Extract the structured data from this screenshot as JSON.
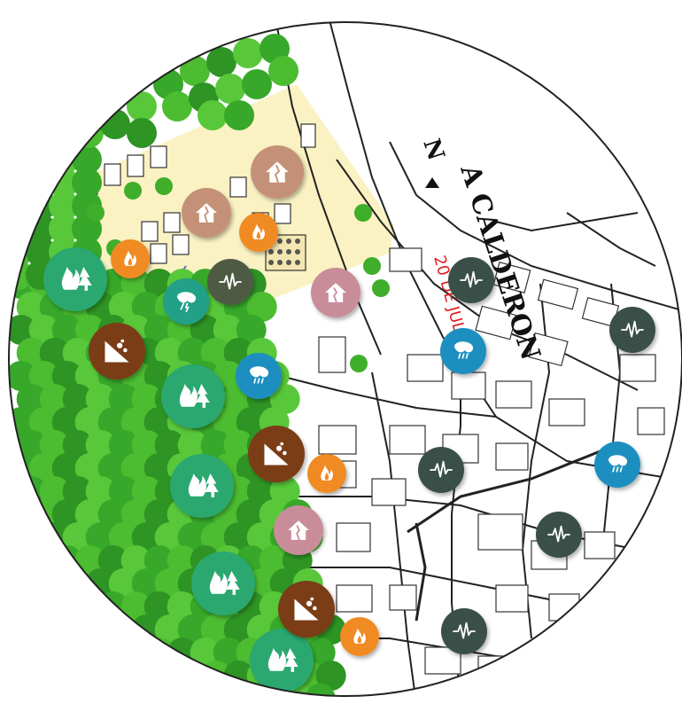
{
  "map": {
    "street_label": "A CALDERON",
    "north_marker": "N",
    "red_label": "20 DE JULIO",
    "colors": {
      "forest_fire": "#2aa870",
      "small_fire": "#f08a24",
      "landslide": "#7a3e12",
      "flood": "#1e8fc0",
      "storm": "#22a088",
      "seismic": "#3a4f4a",
      "seismic_olive": "#4f5a45",
      "house_damage": "#c49178",
      "house_pink": "#c98d9a",
      "vegetation": "#3fae2a",
      "urban_zone": "#faf2c2",
      "roads": "#222222"
    }
  },
  "markers": [
    {
      "icon": "forest-fire-icon",
      "color": "#2aa870"
    },
    {
      "icon": "forest-fire-icon",
      "color": "#2aa870"
    },
    {
      "icon": "forest-fire-icon",
      "color": "#2aa870"
    },
    {
      "icon": "forest-fire-icon",
      "color": "#2aa870"
    },
    {
      "icon": "forest-fire-icon",
      "color": "#2aa870"
    },
    {
      "icon": "fire-icon",
      "color": "#f08a24"
    },
    {
      "icon": "fire-icon",
      "color": "#f08a24"
    },
    {
      "icon": "fire-icon",
      "color": "#f08a24"
    },
    {
      "icon": "fire-icon",
      "color": "#f08a24"
    },
    {
      "icon": "landslide-icon",
      "color": "#7a3e12"
    },
    {
      "icon": "landslide-icon",
      "color": "#7a3e12"
    },
    {
      "icon": "landslide-icon",
      "color": "#7a3e12"
    },
    {
      "icon": "flood-icon",
      "color": "#1e8fc0"
    },
    {
      "icon": "flood-icon",
      "color": "#1e8fc0"
    },
    {
      "icon": "flood-icon",
      "color": "#1e8fc0"
    },
    {
      "icon": "windstorm-icon",
      "color": "#22a088"
    },
    {
      "icon": "seismic-icon",
      "color": "#4f5a45"
    },
    {
      "icon": "seismic-icon",
      "color": "#3a4f4a"
    },
    {
      "icon": "seismic-icon",
      "color": "#3a4f4a"
    },
    {
      "icon": "seismic-icon",
      "color": "#3a4f4a"
    },
    {
      "icon": "seismic-icon",
      "color": "#3a4f4a"
    },
    {
      "icon": "seismic-icon",
      "color": "#3a4f4a"
    },
    {
      "icon": "house-damage-icon",
      "color": "#c49178"
    },
    {
      "icon": "house-damage-icon",
      "color": "#c49178"
    },
    {
      "icon": "house-icon",
      "color": "#c98d9a"
    },
    {
      "icon": "house-icon",
      "color": "#c98d9a"
    }
  ]
}
